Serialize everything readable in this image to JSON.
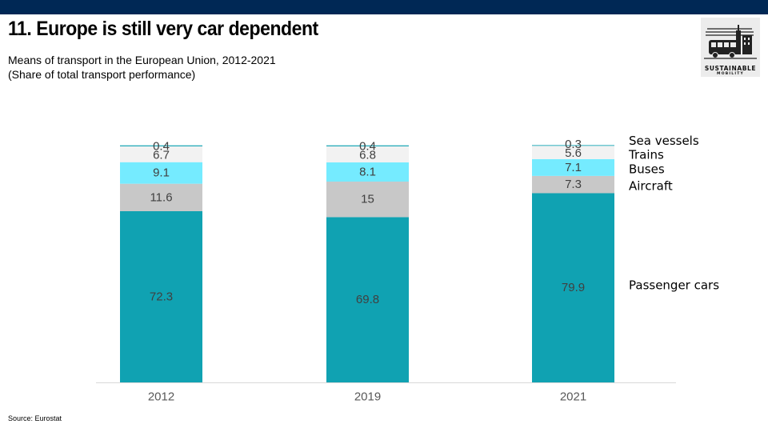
{
  "header": {
    "title": "11. Europe is still very car dependent",
    "subtitle_line1": "Means of transport in the European Union, 2012-2021",
    "subtitle_line2": "(Share of total transport performance)"
  },
  "logo": {
    "line1": "SUSTAINABLE",
    "line2": "MOBILITY"
  },
  "footer": {
    "source": "Source: Eurostat"
  },
  "colors": {
    "topbar": "#002855",
    "passenger_cars": "#10A2B2",
    "aircraft": "#C8C8C8",
    "buses": "#75EBFF",
    "trains": "#F2F2F2",
    "sea_vessels": "#10A2B2"
  },
  "chart_data": {
    "type": "bar",
    "stacked": true,
    "categories": [
      "2012",
      "2019",
      "2021"
    ],
    "series": [
      {
        "name": "Passenger cars",
        "values": [
          72.3,
          69.8,
          79.9
        ],
        "labels": [
          "72.3",
          "69.8",
          "79.9"
        ]
      },
      {
        "name": "Aircraft",
        "values": [
          11.6,
          15,
          7.3
        ],
        "labels": [
          "11.6",
          "15",
          "7.3"
        ]
      },
      {
        "name": "Buses",
        "values": [
          9.1,
          8.1,
          7.1
        ],
        "labels": [
          "9.1",
          "8.1",
          "7.1"
        ]
      },
      {
        "name": "Trains",
        "values": [
          6.7,
          6.8,
          5.6
        ],
        "labels": [
          "6.7",
          "6.8",
          "5.6"
        ]
      },
      {
        "name": "Sea vessels",
        "values": [
          0.4,
          0.4,
          0.3
        ],
        "labels": [
          "0.4",
          "0.4",
          "0.3"
        ]
      }
    ],
    "ylim": [
      0,
      100
    ],
    "legend": "right",
    "grid": false
  }
}
